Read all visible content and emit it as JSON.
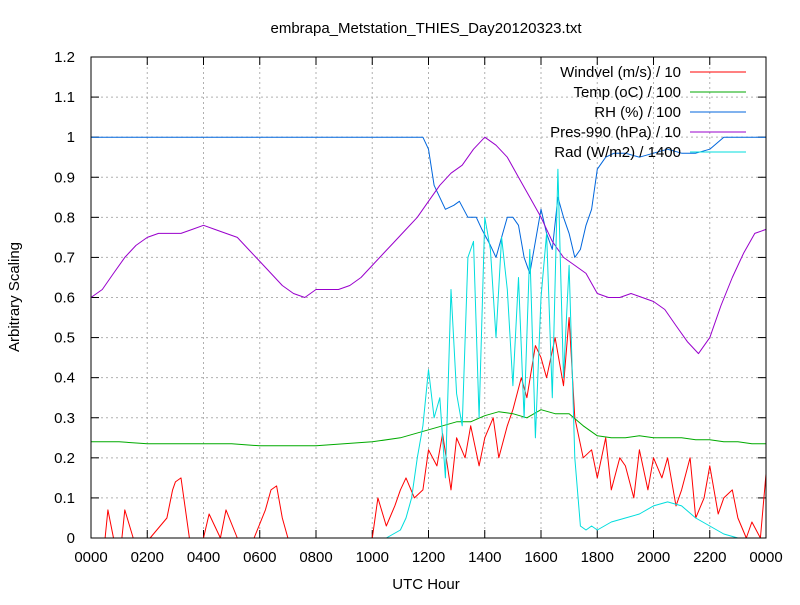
{
  "chart_data": {
    "type": "line",
    "title": "embrapa_Metstation_THIES_Day20120323.txt",
    "xlabel": "UTC Hour",
    "ylabel": "Arbitrary Scaling",
    "x_tick_labels": [
      "0000",
      "0200",
      "0400",
      "0600",
      "0800",
      "1000",
      "1200",
      "1400",
      "1600",
      "1800",
      "2000",
      "2200",
      "0000"
    ],
    "x_range_hours": [
      0,
      24
    ],
    "y_ticks": [
      0,
      0.1,
      0.2,
      0.3,
      0.4,
      0.5,
      0.6,
      0.7,
      0.8,
      0.9,
      1,
      1.1,
      1.2
    ],
    "y_tick_labels": [
      "0",
      "0.1",
      "0.2",
      "0.3",
      "0.4",
      "0.5",
      "0.6",
      "0.7",
      "0.8",
      "0.9",
      "1",
      "1.1",
      "1.2"
    ],
    "ylim": [
      0,
      1.2
    ],
    "grid": true,
    "legend_position": "top-right",
    "series": [
      {
        "name": "Windvel (m/s) / 10",
        "color": "#ff0000",
        "x": [
          0,
          0.5,
          0.6,
          0.8,
          1.1,
          1.2,
          1.5,
          1.8,
          2.1,
          2.7,
          2.9,
          3.0,
          3.2,
          3.3,
          3.5,
          4.0,
          4.2,
          4.6,
          4.8,
          5.2,
          5.5,
          5.8,
          6.2,
          6.4,
          6.6,
          6.8,
          7.0,
          7.3,
          7.6,
          8.0,
          8.3,
          8.6,
          9.0,
          9.5,
          10.0,
          10.2,
          10.5,
          10.8,
          11.0,
          11.2,
          11.5,
          11.8,
          12.0,
          12.3,
          12.5,
          12.8,
          13.0,
          13.3,
          13.5,
          13.8,
          14.0,
          14.3,
          14.5,
          14.8,
          15.0,
          15.3,
          15.5,
          15.8,
          16.0,
          16.2,
          16.5,
          16.8,
          17.0,
          17.2,
          17.5,
          17.8,
          18.0,
          18.3,
          18.5,
          18.8,
          19.0,
          19.3,
          19.5,
          19.8,
          20.0,
          20.3,
          20.5,
          20.8,
          21.0,
          21.3,
          21.5,
          21.8,
          22.0,
          22.3,
          22.5,
          22.8,
          23.0,
          23.3,
          23.5,
          23.8,
          24.0
        ],
        "y": [
          0,
          0,
          0.07,
          0,
          0,
          0.07,
          0,
          0,
          0,
          0.05,
          0.12,
          0.14,
          0.15,
          0.1,
          0,
          0,
          0.06,
          0,
          0.07,
          0,
          0,
          0,
          0.07,
          0.12,
          0.13,
          0.05,
          0,
          0,
          0,
          0,
          0,
          0,
          0,
          0,
          0,
          0.1,
          0.03,
          0.08,
          0.12,
          0.15,
          0.1,
          0.12,
          0.22,
          0.18,
          0.26,
          0.12,
          0.25,
          0.2,
          0.28,
          0.18,
          0.25,
          0.3,
          0.2,
          0.28,
          0.32,
          0.4,
          0.35,
          0.48,
          0.45,
          0.4,
          0.5,
          0.38,
          0.55,
          0.3,
          0.2,
          0.22,
          0.15,
          0.25,
          0.12,
          0.2,
          0.18,
          0.1,
          0.22,
          0.12,
          0.2,
          0.15,
          0.2,
          0.08,
          0.12,
          0.2,
          0.05,
          0.1,
          0.18,
          0.06,
          0.1,
          0.12,
          0.05,
          0,
          0.04,
          0,
          0.16
        ]
      },
      {
        "name": "Temp (oC) / 100",
        "color": "#00aa00",
        "x": [
          0,
          1,
          2,
          3,
          4,
          5,
          6,
          7,
          8,
          9,
          10,
          11,
          11.5,
          12,
          12.5,
          13,
          13.5,
          14,
          14.5,
          15,
          15.5,
          16,
          16.5,
          17,
          17.5,
          18,
          18.5,
          19,
          19.5,
          20,
          20.5,
          21,
          21.5,
          22,
          22.5,
          23,
          23.5,
          24
        ],
        "y": [
          0.24,
          0.24,
          0.235,
          0.235,
          0.235,
          0.235,
          0.23,
          0.23,
          0.23,
          0.235,
          0.24,
          0.25,
          0.26,
          0.27,
          0.28,
          0.29,
          0.29,
          0.305,
          0.315,
          0.31,
          0.3,
          0.32,
          0.31,
          0.31,
          0.28,
          0.255,
          0.25,
          0.25,
          0.255,
          0.25,
          0.25,
          0.25,
          0.245,
          0.245,
          0.24,
          0.24,
          0.235,
          0.235
        ]
      },
      {
        "name": "RH (%) / 100",
        "color": "#0066dd",
        "x": [
          0,
          2,
          4,
          6,
          8,
          10,
          11,
          11.4,
          11.8,
          12.0,
          12.2,
          12.6,
          12.9,
          13.1,
          13.4,
          13.7,
          13.9,
          14.2,
          14.4,
          14.6,
          14.8,
          15.0,
          15.2,
          15.4,
          15.6,
          15.8,
          16.0,
          16.2,
          16.4,
          16.6,
          16.8,
          17.0,
          17.2,
          17.4,
          17.6,
          17.8,
          18.0,
          18.3,
          18.6,
          19.0,
          19.5,
          20.0,
          20.5,
          21.0,
          21.5,
          22.0,
          22.5,
          23.0,
          23.5,
          24.0
        ],
        "y": [
          1,
          1,
          1,
          1,
          1,
          1,
          1,
          1,
          1,
          0.97,
          0.88,
          0.82,
          0.83,
          0.84,
          0.8,
          0.8,
          0.77,
          0.73,
          0.7,
          0.75,
          0.8,
          0.8,
          0.78,
          0.7,
          0.66,
          0.74,
          0.82,
          0.76,
          0.72,
          0.85,
          0.8,
          0.76,
          0.7,
          0.72,
          0.78,
          0.82,
          0.92,
          0.95,
          0.96,
          0.96,
          0.95,
          0.96,
          0.97,
          0.96,
          0.96,
          0.97,
          1,
          1,
          1,
          1
        ]
      },
      {
        "name": "Pres-990 (hPa) / 10",
        "color": "#9900cc",
        "x": [
          0,
          0.4,
          0.8,
          1.2,
          1.6,
          2.0,
          2.4,
          2.8,
          3.2,
          3.6,
          4.0,
          4.4,
          4.8,
          5.2,
          5.6,
          6.0,
          6.4,
          6.8,
          7.2,
          7.6,
          8.0,
          8.4,
          8.8,
          9.2,
          9.6,
          10.0,
          10.4,
          10.8,
          11.2,
          11.6,
          12.0,
          12.4,
          12.8,
          13.2,
          13.6,
          14.0,
          14.4,
          14.8,
          15.2,
          15.6,
          16.0,
          16.4,
          16.8,
          17.2,
          17.6,
          18.0,
          18.4,
          18.8,
          19.2,
          19.6,
          20.0,
          20.4,
          20.8,
          21.2,
          21.6,
          22.0,
          22.4,
          22.8,
          23.2,
          23.6,
          24.0
        ],
        "y": [
          0.6,
          0.62,
          0.66,
          0.7,
          0.73,
          0.75,
          0.76,
          0.76,
          0.76,
          0.77,
          0.78,
          0.77,
          0.76,
          0.75,
          0.72,
          0.69,
          0.66,
          0.63,
          0.61,
          0.6,
          0.62,
          0.62,
          0.62,
          0.63,
          0.65,
          0.68,
          0.71,
          0.74,
          0.77,
          0.8,
          0.84,
          0.88,
          0.91,
          0.93,
          0.97,
          1.0,
          0.98,
          0.95,
          0.9,
          0.85,
          0.8,
          0.74,
          0.7,
          0.68,
          0.66,
          0.61,
          0.6,
          0.6,
          0.61,
          0.6,
          0.59,
          0.57,
          0.53,
          0.49,
          0.46,
          0.5,
          0.58,
          0.65,
          0.71,
          0.76,
          0.77
        ]
      },
      {
        "name": "Rad (W/m2) / 1400",
        "color": "#00dddd",
        "x": [
          0,
          8,
          10.5,
          11.0,
          11.2,
          11.4,
          11.6,
          11.8,
          12.0,
          12.2,
          12.4,
          12.6,
          12.8,
          13.0,
          13.2,
          13.4,
          13.6,
          13.8,
          14.0,
          14.2,
          14.4,
          14.6,
          14.8,
          15.0,
          15.2,
          15.4,
          15.6,
          15.8,
          16.0,
          16.2,
          16.4,
          16.6,
          16.8,
          17.0,
          17.2,
          17.4,
          17.6,
          17.8,
          18.0,
          18.5,
          19.0,
          19.5,
          20.0,
          20.5,
          21.0,
          21.5,
          22.0,
          22.5,
          23.0,
          24.0
        ],
        "y": [
          0,
          0,
          0,
          0.02,
          0.05,
          0.1,
          0.2,
          0.28,
          0.42,
          0.3,
          0.35,
          0.15,
          0.62,
          0.36,
          0.28,
          0.7,
          0.74,
          0.3,
          0.8,
          0.72,
          0.5,
          0.75,
          0.62,
          0.38,
          0.65,
          0.3,
          0.72,
          0.25,
          0.6,
          0.76,
          0.35,
          0.92,
          0.4,
          0.68,
          0.2,
          0.03,
          0.02,
          0.03,
          0.02,
          0.04,
          0.05,
          0.06,
          0.08,
          0.09,
          0.08,
          0.05,
          0.03,
          0.01,
          0,
          0
        ]
      }
    ]
  }
}
